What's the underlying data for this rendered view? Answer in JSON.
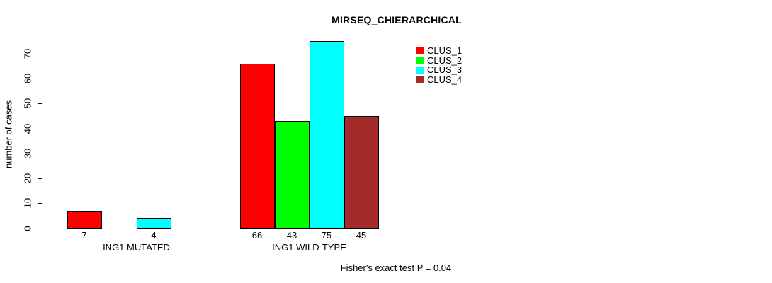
{
  "chart_data": {
    "type": "bar",
    "title": "MIRSEQ_CHIERARCHICAL",
    "ylabel": "number of cases",
    "xlabel": "",
    "annotation": "Fisher's exact test P = 0.04",
    "ylim": [
      0,
      75
    ],
    "yticks": [
      0,
      10,
      20,
      30,
      40,
      50,
      60,
      70
    ],
    "grid": false,
    "legend_position": "top-right",
    "series": [
      {
        "name": "CLUS_1",
        "color": "#ff0000"
      },
      {
        "name": "CLUS_2",
        "color": "#00ff00"
      },
      {
        "name": "CLUS_3",
        "color": "#00ffff"
      },
      {
        "name": "CLUS_4",
        "color": "#a52a2a"
      }
    ],
    "groups": [
      {
        "label": "ING1 MUTATED",
        "values": [
          7,
          0,
          4,
          0
        ],
        "bar_labels": [
          "7",
          "",
          "4",
          ""
        ]
      },
      {
        "label": "ING1 WILD-TYPE",
        "values": [
          66,
          43,
          75,
          45
        ],
        "bar_labels": [
          "66",
          "43",
          "75",
          "45"
        ]
      }
    ],
    "colors": {
      "axis": "#000000",
      "text": "#000000",
      "background": "#ffffff"
    }
  }
}
